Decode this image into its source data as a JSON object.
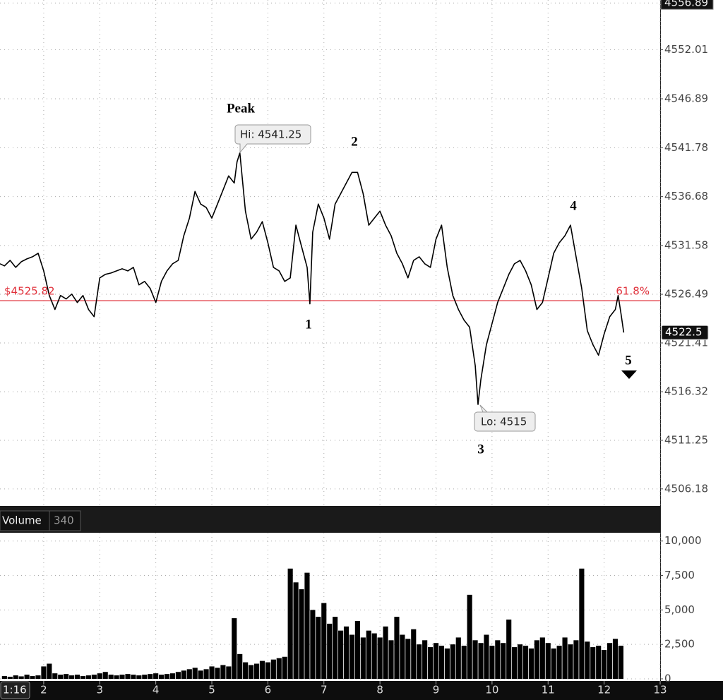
{
  "chart_data": [
    {
      "type": "line",
      "x": [
        1.22,
        1.3,
        1.4,
        1.5,
        1.6,
        1.7,
        1.8,
        1.9,
        2.0,
        2.1,
        2.2,
        2.3,
        2.4,
        2.5,
        2.6,
        2.7,
        2.8,
        2.9,
        3.0,
        3.1,
        3.2,
        3.3,
        3.4,
        3.5,
        3.6,
        3.7,
        3.8,
        3.9,
        4.0,
        4.1,
        4.2,
        4.3,
        4.4,
        4.5,
        4.6,
        4.7,
        4.8,
        4.9,
        5.0,
        5.1,
        5.2,
        5.3,
        5.4,
        5.45,
        5.5,
        5.6,
        5.7,
        5.8,
        5.9,
        6.0,
        6.1,
        6.2,
        6.3,
        6.4,
        6.5,
        6.6,
        6.7,
        6.75,
        6.8,
        6.9,
        7.0,
        7.1,
        7.2,
        7.3,
        7.4,
        7.5,
        7.6,
        7.7,
        7.8,
        7.9,
        8.0,
        8.1,
        8.2,
        8.3,
        8.4,
        8.5,
        8.6,
        8.7,
        8.8,
        8.9,
        9.0,
        9.1,
        9.2,
        9.3,
        9.4,
        9.5,
        9.6,
        9.7,
        9.75,
        9.8,
        9.9,
        10.0,
        10.1,
        10.2,
        10.3,
        10.4,
        10.5,
        10.6,
        10.7,
        10.8,
        10.9,
        11.0,
        11.1,
        11.2,
        11.3,
        11.4,
        11.5,
        11.6,
        11.7,
        11.8,
        11.9,
        12.0,
        12.1,
        12.2,
        12.25,
        12.3,
        12.35
      ],
      "series": [
        {
          "color": "#000000",
          "values": [
            4529.67,
            4529.45,
            4530.03,
            4529.3,
            4529.89,
            4530.18,
            4530.4,
            4530.77,
            4528.93,
            4526.37,
            4524.9,
            4526.37,
            4526.0,
            4526.51,
            4525.63,
            4526.37,
            4524.9,
            4524.16,
            4528.2,
            4528.57,
            4528.71,
            4528.93,
            4529.15,
            4528.93,
            4529.3,
            4527.47,
            4527.83,
            4527.1,
            4525.63,
            4527.83,
            4528.93,
            4529.67,
            4530.03,
            4532.6,
            4534.44,
            4537.22,
            4535.9,
            4535.54,
            4534.44,
            4535.9,
            4537.37,
            4538.84,
            4538.1,
            4540.31,
            4541.25,
            4535.17,
            4532.24,
            4532.97,
            4534.07,
            4531.87,
            4529.3,
            4528.93,
            4527.83,
            4528.2,
            4533.7,
            4531.5,
            4529.3,
            4525.49,
            4532.97,
            4535.9,
            4534.44,
            4532.24,
            4535.9,
            4537.0,
            4538.1,
            4539.21,
            4539.21,
            4537.0,
            4533.7,
            4534.44,
            4535.17,
            4533.7,
            4532.6,
            4530.77,
            4529.67,
            4528.2,
            4530.03,
            4530.4,
            4529.67,
            4529.3,
            4532.24,
            4533.7,
            4529.3,
            4526.37,
            4524.9,
            4523.8,
            4523.06,
            4519.03,
            4515,
            4517.56,
            4521.23,
            4523.43,
            4525.63,
            4527.1,
            4528.57,
            4529.67,
            4530.03,
            4528.93,
            4527.47,
            4524.9,
            4525.63,
            4528.2,
            4530.77,
            4531.87,
            4532.6,
            4533.7,
            4530.4,
            4527.1,
            4522.7,
            4521.23,
            4520.13,
            4522.33,
            4524.16,
            4524.9,
            4526.37,
            4524.53,
            4522.5
          ]
        }
      ],
      "xlim": [
        1.22,
        13
      ],
      "ylim": [
        4504.4,
        4557.2
      ],
      "yticks": [
        4506.18,
        4511.25,
        4516.32,
        4521.41,
        4526.49,
        4531.58,
        4536.68,
        4541.78,
        4546.89,
        4552.01,
        4556.89
      ],
      "grid": true,
      "reference_line": {
        "value": 4525.82,
        "label": "$4525.82",
        "right_label": "61.8%",
        "color": "#e0313b"
      },
      "annotations": {
        "peak": "Peak",
        "hi": "Hi: 4541.25",
        "lo": "Lo: 4515",
        "waves": [
          "1",
          "2",
          "3",
          "4",
          "5"
        ]
      }
    },
    {
      "type": "bar",
      "title": "Volume",
      "current_value": 340,
      "x": [
        1.3,
        1.4,
        1.5,
        1.6,
        1.7,
        1.8,
        1.9,
        2.0,
        2.1,
        2.2,
        2.3,
        2.4,
        2.5,
        2.6,
        2.7,
        2.8,
        2.9,
        3.0,
        3.1,
        3.2,
        3.3,
        3.4,
        3.5,
        3.6,
        3.7,
        3.8,
        3.9,
        4.0,
        4.1,
        4.2,
        4.3,
        4.4,
        4.5,
        4.6,
        4.7,
        4.8,
        4.9,
        5.0,
        5.1,
        5.2,
        5.3,
        5.4,
        5.5,
        5.6,
        5.7,
        5.8,
        5.9,
        6.0,
        6.1,
        6.2,
        6.3,
        6.4,
        6.5,
        6.6,
        6.7,
        6.8,
        6.9,
        7.0,
        7.1,
        7.2,
        7.3,
        7.4,
        7.5,
        7.6,
        7.7,
        7.8,
        7.9,
        8.0,
        8.1,
        8.2,
        8.3,
        8.4,
        8.5,
        8.6,
        8.7,
        8.8,
        8.9,
        9.0,
        9.1,
        9.2,
        9.3,
        9.4,
        9.5,
        9.6,
        9.7,
        9.8,
        9.9,
        10.0,
        10.1,
        10.2,
        10.3,
        10.4,
        10.5,
        10.6,
        10.7,
        10.8,
        10.9,
        11.0,
        11.1,
        11.2,
        11.3,
        11.4,
        11.5,
        11.6,
        11.7,
        11.8,
        11.9,
        12.0,
        12.1,
        12.2,
        12.3
      ],
      "values": [
        200,
        150,
        250,
        180,
        300,
        200,
        250,
        900,
        1100,
        400,
        300,
        350,
        250,
        300,
        200,
        250,
        300,
        400,
        500,
        300,
        250,
        300,
        350,
        300,
        250,
        300,
        350,
        400,
        300,
        350,
        400,
        500,
        600,
        700,
        800,
        600,
        700,
        900,
        800,
        1000,
        900,
        4400,
        1800,
        1200,
        1000,
        1100,
        1300,
        1200,
        1400,
        1500,
        1600,
        8000,
        7000,
        6500,
        7700,
        5000,
        4500,
        5500,
        4000,
        4500,
        3500,
        3800,
        3200,
        4200,
        3000,
        3500,
        3300,
        3000,
        3800,
        2800,
        4500,
        3200,
        2900,
        3600,
        2500,
        2800,
        2300,
        2600,
        2400,
        2200,
        2500,
        3000,
        2400,
        6100,
        2800,
        2600,
        3200,
        2400,
        2800,
        2600,
        4300,
        2300,
        2500,
        2400,
        2200,
        2800,
        3000,
        2600,
        2200,
        2400,
        3000,
        2500,
        2800,
        8000,
        2700,
        2300,
        2400,
        2100,
        2600,
        2900,
        2400
      ],
      "color": "#000000",
      "xlim": [
        1.22,
        13
      ],
      "xticks": [
        2,
        3,
        4,
        5,
        6,
        7,
        8,
        9,
        10,
        11,
        12,
        13
      ],
      "x_cursor_label": "1:16",
      "ylim": [
        0,
        10600
      ],
      "yticks": [
        0,
        {
          "value": 2500,
          "label": "2,500"
        },
        {
          "value": 5000,
          "label": "5,000"
        },
        {
          "value": 7500,
          "label": "7,500"
        },
        {
          "value": 10000,
          "label": "10,000"
        }
      ],
      "grid": true
    }
  ]
}
